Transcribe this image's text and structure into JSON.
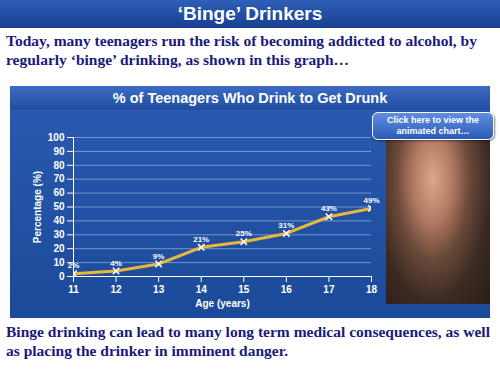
{
  "slide": {
    "title": "‘Binge’ Drinkers",
    "intro": "Today, many teenagers run the risk of becoming addicted to alcohol, by regularly ‘binge’ drinking, as shown in this graph…",
    "button": "Click here to view the animated chart…",
    "footer": "Binge drinking can lead to many long term medical consequences, as well as placing the drinker in imminent danger."
  },
  "chart_data": {
    "type": "line",
    "title": "% of Teenagers Who Drink to Get Drunk",
    "x_label": "Age (years)",
    "y_label": "Percentage (%)",
    "x": [
      11,
      12,
      13,
      14,
      15,
      16,
      17,
      18
    ],
    "values": [
      2,
      4,
      9,
      21,
      25,
      31,
      43,
      49
    ],
    "value_labels": [
      "2%",
      "4%",
      "9%",
      "21%",
      "25%",
      "31%",
      "43%",
      "49%"
    ],
    "color": "#e8b83a",
    "marker": "x",
    "data_labels": true,
    "grid": true,
    "xlim": [
      11,
      18
    ],
    "xticks": [
      11,
      12,
      13,
      14,
      15,
      16,
      17,
      18
    ],
    "ylim": [
      0,
      100
    ],
    "yticks": [
      0,
      10,
      20,
      30,
      40,
      50,
      60,
      70,
      80,
      90,
      100
    ]
  }
}
